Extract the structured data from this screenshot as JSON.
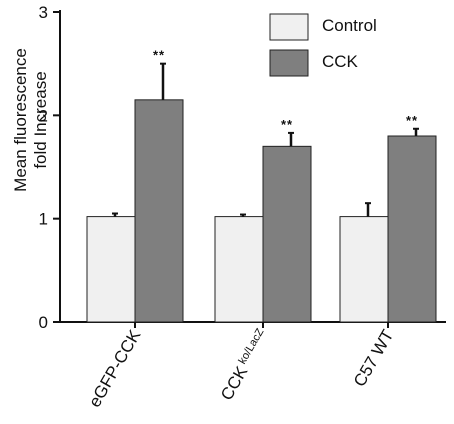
{
  "chart_data": {
    "type": "bar",
    "categories": [
      "eGFP-CCK",
      "CCK",
      "C57 WT"
    ],
    "category_superscripts": [
      "",
      "ko/LacZ",
      ""
    ],
    "ylabel_lines": [
      "Mean fluorescence",
      "fold Increase"
    ],
    "ylim": [
      0,
      3
    ],
    "yticks": [
      "0",
      "1",
      "2",
      "3"
    ],
    "legend_position": "top-right",
    "series": [
      {
        "name": "Control",
        "color": "#f0f0f0",
        "values": [
          1.02,
          1.02,
          1.02
        ],
        "errors": [
          0.03,
          0.02,
          0.13
        ],
        "significance": [
          "",
          "",
          ""
        ]
      },
      {
        "name": "CCK",
        "color": "#7f7f7f",
        "values": [
          2.15,
          1.7,
          1.8
        ],
        "errors": [
          0.35,
          0.13,
          0.07
        ],
        "significance": [
          "**",
          "**",
          "**"
        ]
      }
    ]
  }
}
